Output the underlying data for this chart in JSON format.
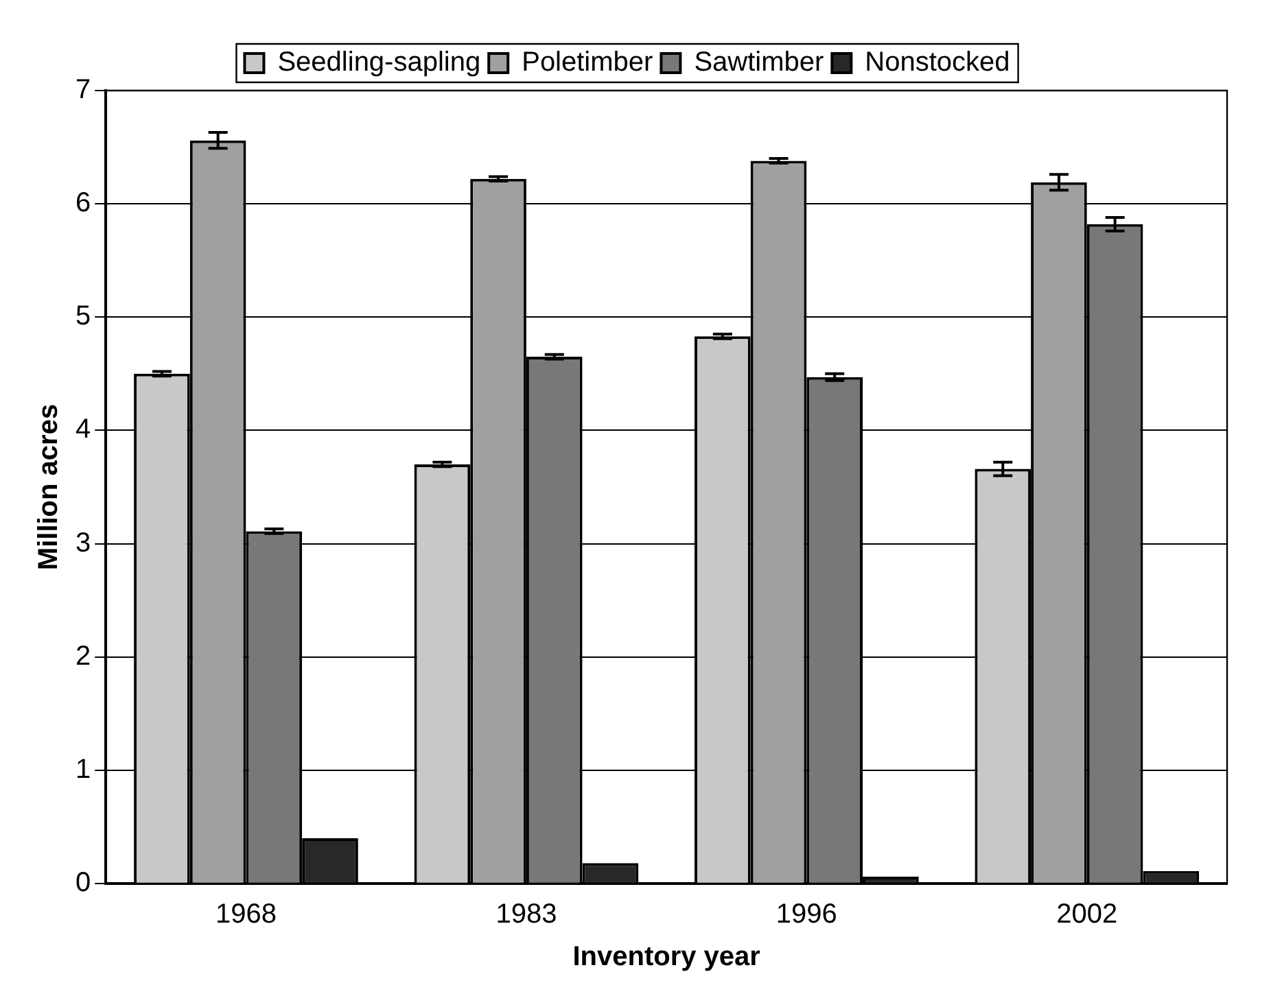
{
  "chart_data": {
    "type": "bar",
    "xlabel": "Inventory year",
    "ylabel": "Million acres",
    "categories": [
      "1968",
      "1983",
      "1996",
      "2002"
    ],
    "series": [
      {
        "name": "Seedling-sapling",
        "color": "#c8c8c8",
        "values": [
          4.5,
          3.7,
          4.83,
          3.66
        ],
        "errors": [
          0.02,
          0.02,
          0.02,
          0.06
        ]
      },
      {
        "name": "Poletimber",
        "color": "#a0a0a0",
        "values": [
          6.56,
          6.22,
          6.38,
          6.19
        ],
        "errors": [
          0.07,
          0.02,
          0.02,
          0.07
        ]
      },
      {
        "name": "Sawtimber",
        "color": "#787878",
        "values": [
          3.11,
          4.65,
          4.47,
          5.82
        ],
        "errors": [
          0.02,
          0.02,
          0.03,
          0.06
        ]
      },
      {
        "name": "Nonstocked",
        "color": "#282828",
        "values": [
          0.4,
          0.18,
          0.06,
          0.11
        ]
      }
    ],
    "ylim": [
      0,
      7
    ],
    "yticks": [
      0,
      1,
      2,
      3,
      4,
      5,
      6,
      7
    ],
    "grid": "y",
    "legend": "top"
  }
}
